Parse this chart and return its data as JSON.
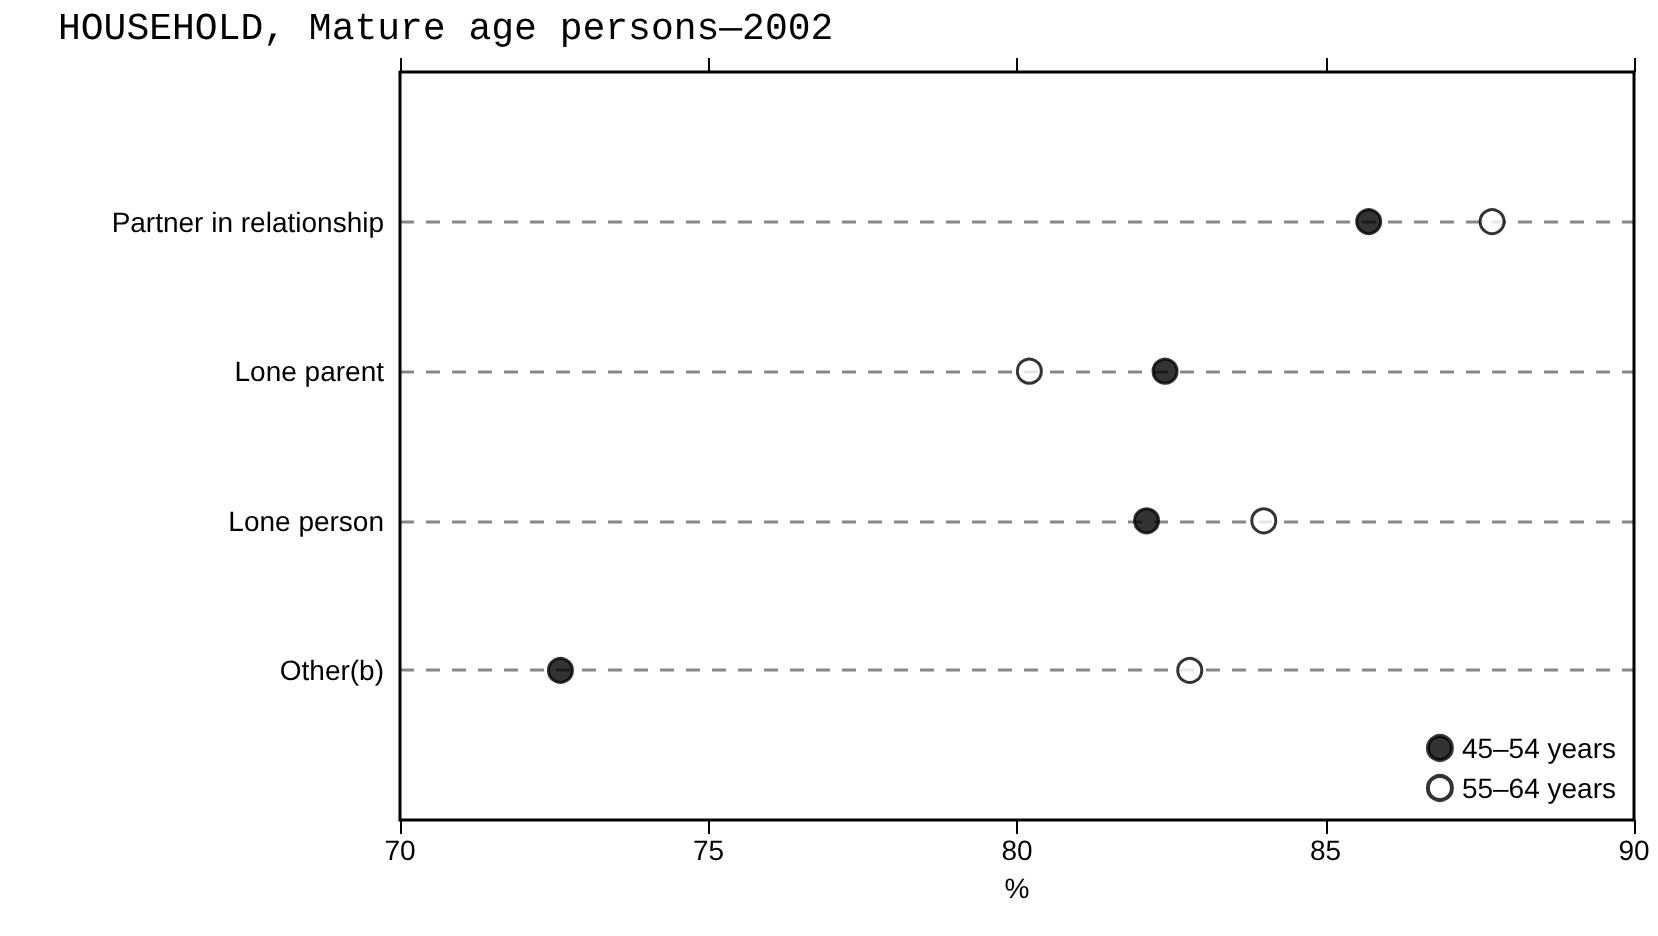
{
  "chart_data": {
    "type": "scatter",
    "title": "HOUSEHOLD, Mature age persons—2002",
    "xlabel": "%",
    "categories": [
      "Partner in relationship",
      "Lone parent",
      "Lone person",
      "Other(b)"
    ],
    "series": [
      {
        "name": "45–54 years",
        "color": "#000000",
        "values": [
          85.7,
          82.4,
          82.1,
          72.6
        ]
      },
      {
        "name": "55–64 years",
        "color": "#ffffff",
        "values": [
          87.7,
          80.2,
          84.0,
          82.8
        ]
      }
    ],
    "orientation": "horizontal",
    "xlim": [
      70,
      90
    ],
    "xticks": [
      70,
      75,
      80,
      85,
      90
    ],
    "grid": "y",
    "legend": "bottom right",
    "marker": "circle"
  }
}
